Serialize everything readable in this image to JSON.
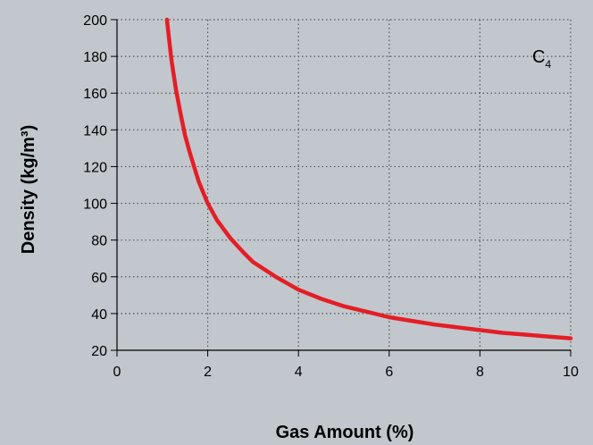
{
  "chart_data": {
    "type": "line",
    "title": "",
    "xlabel": "Gas Amount (%)",
    "ylabel": "Density (kg/m³)",
    "xlim": [
      0,
      10
    ],
    "ylim": [
      20,
      200
    ],
    "x_ticks": [
      0,
      2,
      4,
      6,
      8,
      10
    ],
    "y_ticks": [
      20,
      40,
      60,
      80,
      100,
      120,
      140,
      160,
      180,
      200
    ],
    "grid": true,
    "grid_style": "dotted",
    "annotation": {
      "text": "C",
      "subscript": "4"
    },
    "series": [
      {
        "color": "#e41e26",
        "x": [
          1.1,
          1.2,
          1.3,
          1.4,
          1.5,
          1.6,
          1.8,
          2.0,
          2.2,
          2.5,
          2.8,
          3.0,
          3.5,
          4.0,
          4.5,
          5.0,
          5.5,
          6.0,
          6.5,
          7.0,
          7.5,
          8.0,
          8.5,
          9.0,
          9.5,
          10.0
        ],
        "values": [
          200,
          178,
          162,
          149,
          137,
          128,
          112,
          100,
          91,
          81,
          73,
          68,
          60,
          53,
          48,
          44,
          41,
          38,
          36,
          34,
          32.5,
          31,
          29.5,
          28.5,
          27.5,
          26.5
        ]
      }
    ]
  }
}
